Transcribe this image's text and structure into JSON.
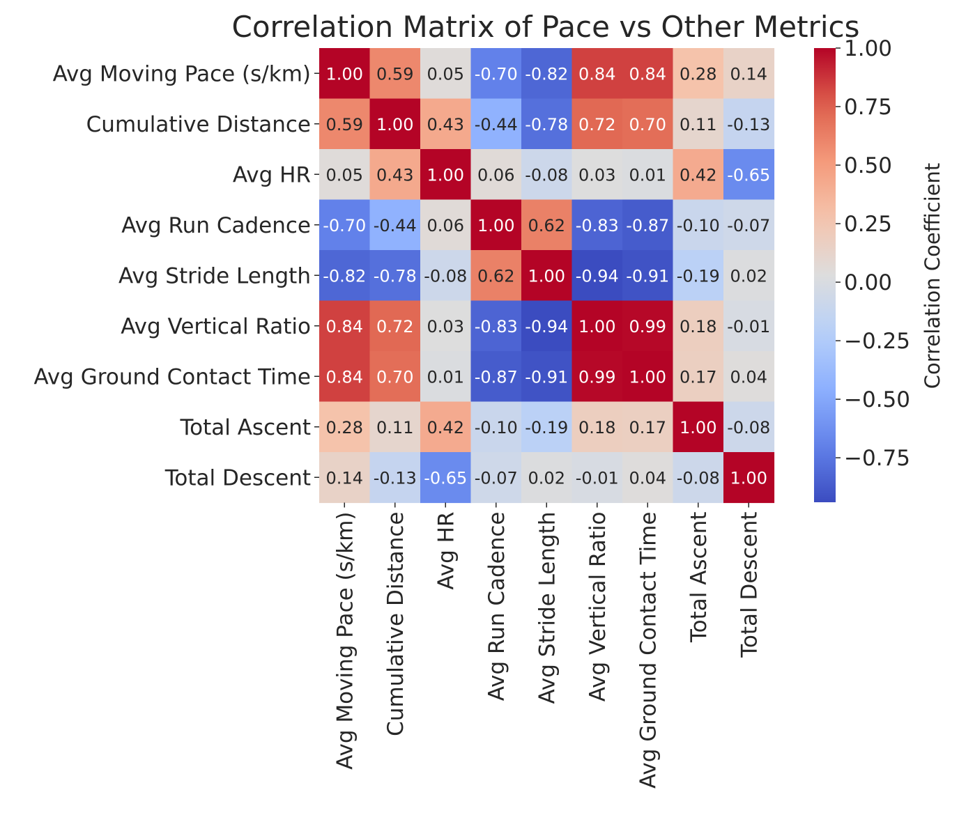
{
  "chart_data": {
    "type": "heatmap",
    "title": "Correlation Matrix of Pace vs Other Metrics",
    "labels": [
      "Avg Moving Pace (s/km)",
      "Cumulative Distance",
      "Avg HR",
      "Avg Run Cadence",
      "Avg Stride Length",
      "Avg Vertical Ratio",
      "Avg Ground Contact Time",
      "Total Ascent",
      "Total Descent"
    ],
    "values": [
      [
        1.0,
        0.59,
        0.05,
        -0.7,
        -0.82,
        0.84,
        0.84,
        0.28,
        0.14
      ],
      [
        0.59,
        1.0,
        0.43,
        -0.44,
        -0.78,
        0.72,
        0.7,
        0.11,
        -0.13
      ],
      [
        0.05,
        0.43,
        1.0,
        0.06,
        -0.08,
        0.03,
        0.01,
        0.42,
        -0.65
      ],
      [
        -0.7,
        -0.44,
        0.06,
        1.0,
        0.62,
        -0.83,
        -0.87,
        -0.1,
        -0.07
      ],
      [
        -0.82,
        -0.78,
        -0.08,
        0.62,
        1.0,
        -0.94,
        -0.91,
        -0.19,
        0.02
      ],
      [
        0.84,
        0.72,
        0.03,
        -0.83,
        -0.94,
        1.0,
        0.99,
        0.18,
        -0.01
      ],
      [
        0.84,
        0.7,
        0.01,
        -0.87,
        -0.91,
        0.99,
        1.0,
        0.17,
        0.04
      ],
      [
        0.28,
        0.11,
        0.42,
        -0.1,
        -0.19,
        0.18,
        0.17,
        1.0,
        -0.08
      ],
      [
        0.14,
        -0.13,
        -0.65,
        -0.07,
        0.02,
        -0.01,
        0.04,
        -0.08,
        1.0
      ]
    ],
    "colormap": "coolwarm",
    "vmin": -0.94,
    "vmax": 1.0,
    "colorbar": {
      "label": "Correlation Coefficient",
      "ticks": [
        1.0,
        0.75,
        0.5,
        0.25,
        0.0,
        -0.25,
        -0.5,
        -0.75
      ],
      "tick_labels": [
        "1.00",
        "0.75",
        "0.50",
        "0.25",
        "0.00",
        "−0.25",
        "−0.50",
        "−0.75"
      ]
    }
  }
}
